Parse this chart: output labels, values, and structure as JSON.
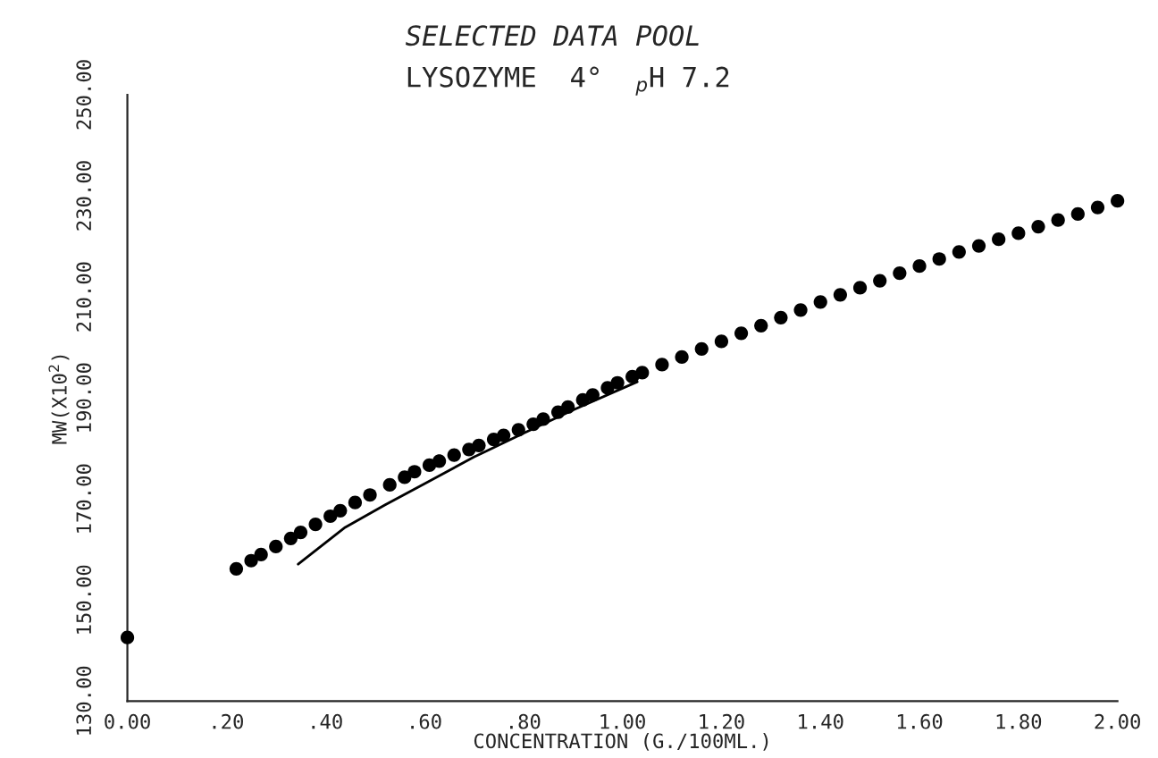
{
  "chart_data": {
    "type": "scatter",
    "title": "SELECTED DATA POOL",
    "subtitle": "LYSOZYME  4°  $_{p}$H 7.2",
    "xlabel": "CONCENTRATION (G./100ML.)",
    "ylabel": "MW(X10$^{2}$)",
    "xlim": [
      0,
      2
    ],
    "ylim": [
      130,
      250
    ],
    "xticks": [
      {
        "value": 0,
        "label": "0.00"
      },
      {
        "value": 0.2,
        "label": ".20"
      },
      {
        "value": 0.4,
        "label": ".40"
      },
      {
        "value": 0.6,
        "label": ".60"
      },
      {
        "value": 0.8,
        "label": ".80"
      },
      {
        "value": 1.0,
        "label": "1.00"
      },
      {
        "value": 1.2,
        "label": "1.20"
      },
      {
        "value": 1.4,
        "label": "1.40"
      },
      {
        "value": 1.6,
        "label": "1.60"
      },
      {
        "value": 1.8,
        "label": "1.80"
      },
      {
        "value": 2.0,
        "label": "2.00"
      }
    ],
    "yticks": [
      {
        "value": 130,
        "label": "130.00"
      },
      {
        "value": 150,
        "label": "150.00"
      },
      {
        "value": 170,
        "label": "170.00"
      },
      {
        "value": 190,
        "label": "190.00"
      },
      {
        "value": 210,
        "label": "210.00"
      },
      {
        "value": 230,
        "label": "230.00"
      },
      {
        "value": 250,
        "label": "250.00"
      }
    ],
    "grid": false,
    "legend": false,
    "marker": "circle",
    "series": [
      {
        "color": "#000000",
        "x": [
          0.22,
          0.25,
          0.27,
          0.3,
          0.33,
          0.35,
          0.38,
          0.41,
          0.43,
          0.46,
          0.49,
          0.53,
          0.56,
          0.58,
          0.61,
          0.63,
          0.66,
          0.69,
          0.71,
          0.74,
          0.76,
          0.79,
          0.82,
          0.84,
          0.87,
          0.89,
          0.92,
          0.94,
          0.97,
          0.99,
          1.02,
          1.04,
          1.08,
          1.12,
          1.16,
          1.2,
          1.24,
          1.28,
          1.32,
          1.36,
          1.4,
          1.44,
          1.48,
          1.52,
          1.56,
          1.6,
          1.64,
          1.68,
          1.72,
          1.76,
          1.8,
          1.84,
          1.88,
          1.92,
          1.96,
          2.0
        ],
        "values": [
          156.2,
          157.8,
          159.0,
          160.6,
          162.2,
          163.4,
          165.0,
          166.6,
          167.7,
          169.3,
          170.8,
          172.8,
          174.3,
          175.4,
          176.7,
          177.5,
          178.7,
          179.8,
          180.6,
          181.8,
          182.6,
          183.7,
          184.8,
          185.8,
          187.2,
          188.2,
          189.6,
          190.6,
          192.0,
          193.0,
          194.2,
          195.0,
          196.6,
          198.1,
          199.7,
          201.2,
          202.8,
          204.3,
          205.9,
          207.4,
          209.0,
          210.4,
          211.8,
          213.2,
          214.7,
          216.1,
          217.5,
          218.9,
          220.1,
          221.4,
          222.6,
          223.9,
          225.2,
          226.4,
          227.7,
          229.0
        ]
      },
      {
        "color": "#000000",
        "x": [
          0.0
        ],
        "values": [
          142.6
        ]
      },
      {
        "type": "line",
        "color": "#000000",
        "marker": "none",
        "line_style": "solid",
        "x": [
          0.345,
          0.44,
          0.52,
          0.6,
          0.7,
          0.8,
          0.9,
          1.03
        ],
        "values": [
          157.1,
          164.4,
          168.8,
          173.0,
          178.3,
          183.0,
          187.6,
          193.2
        ]
      }
    ]
  }
}
